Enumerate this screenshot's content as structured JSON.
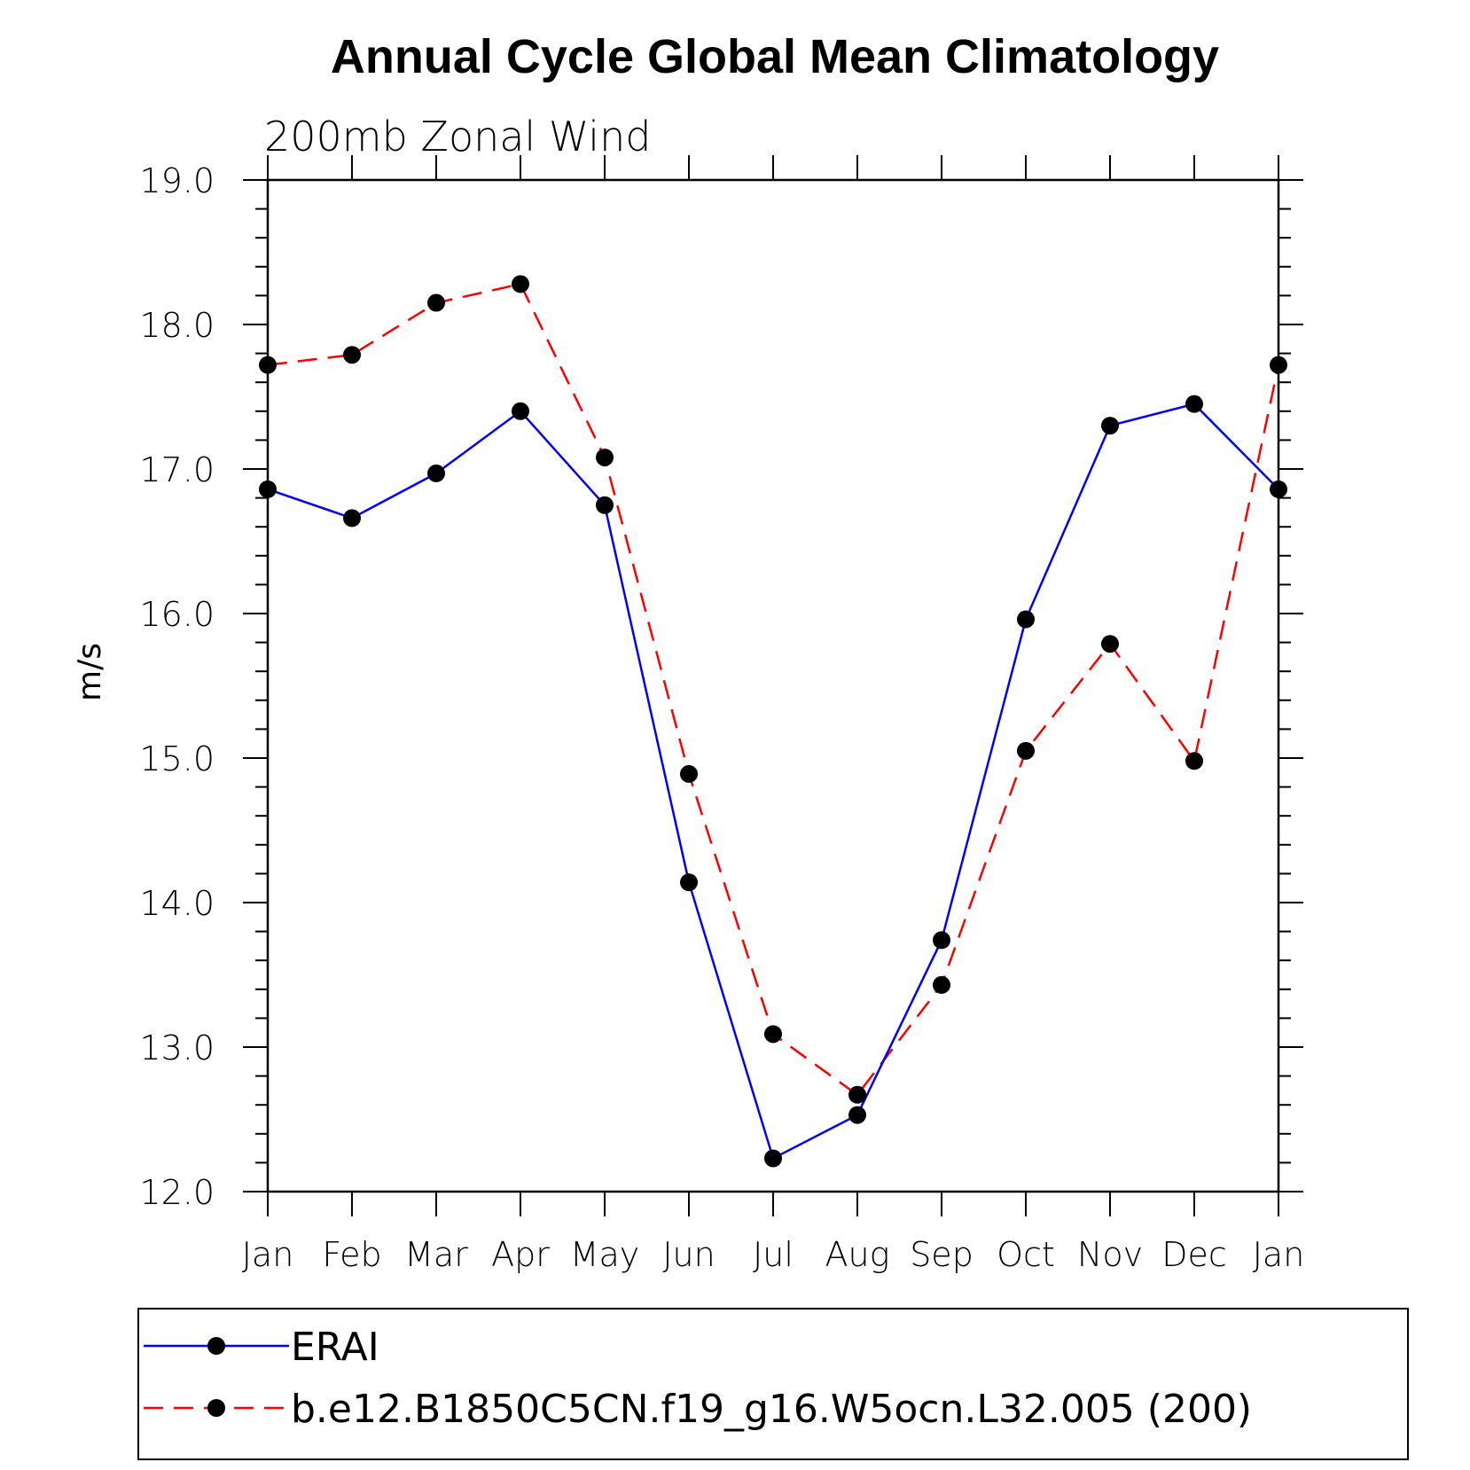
{
  "chart_data": {
    "type": "line",
    "title": "Annual Cycle Global Mean Climatology",
    "subtitle": "200mb Zonal Wind",
    "xlabel": "",
    "ylabel": "m/s",
    "categories": [
      "Jan",
      "Feb",
      "Mar",
      "Apr",
      "May",
      "Jun",
      "Jul",
      "Aug",
      "Sep",
      "Oct",
      "Nov",
      "Dec",
      "Jan"
    ],
    "ylim": [
      12.0,
      19.0
    ],
    "yticks": [
      "12.0",
      "13.0",
      "14.0",
      "15.0",
      "16.0",
      "17.0",
      "18.0",
      "19.0"
    ],
    "grid": false,
    "legend_position": "bottom",
    "series": [
      {
        "name": "ERAI",
        "color": "#0000ff",
        "line_style": "solid",
        "marker": "filled-circle",
        "values": [
          16.86,
          16.66,
          16.97,
          17.4,
          16.75,
          14.14,
          12.23,
          12.53,
          13.74,
          15.96,
          17.3,
          17.45,
          16.86
        ]
      },
      {
        "name": "b.e12.B1850C5CN.f19_g16.W5ocn.L32.005 (200)",
        "color": "#ff0000",
        "line_style": "dashed",
        "marker": "filled-circle",
        "values": [
          17.72,
          17.79,
          18.15,
          18.28,
          17.08,
          14.89,
          13.09,
          12.67,
          13.43,
          15.05,
          15.79,
          14.98,
          17.72
        ]
      }
    ]
  }
}
